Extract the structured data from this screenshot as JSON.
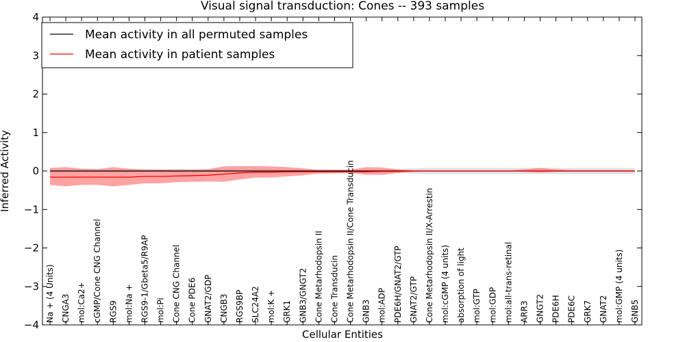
{
  "chart_data": {
    "type": "line",
    "title": "Visual signal transduction: Cones -- 393 samples",
    "xlabel": "Cellular Entities",
    "ylabel": "Inferred Activity",
    "ylim": [
      -4,
      4
    ],
    "yticks": [
      -4,
      -3,
      -2,
      -1,
      0,
      1,
      2,
      3,
      4
    ],
    "grid": false,
    "legend_position": "top-left",
    "categories": [
      "Na + (4 Units)",
      "CNGA3",
      "mol:Ca2+",
      "cGMP/Cone CNG Channel",
      "RGS9",
      "mol:Na +",
      "RGS9-1/Gbeta5/R9AP",
      "mol:Pi",
      "Cone CNG Channel",
      "Cone PDE6",
      "GNAT2/GDP",
      "CNGB3",
      "RGS9BP",
      "SLC24A2",
      "mol:K +",
      "GRK1",
      "GNB3/GNGT2",
      "Cone Metarhodopsin II",
      "Cone Transducin",
      "Cone Metarhodopsin II/Cone Transducin",
      "GNB3",
      "mol:ADP",
      "PDE6H/GNAT2/GTP",
      "GNAT2/GTP",
      "Cone Metarhodopsin II/X-Arrestin",
      "mol:cGMP (4 units)",
      "absorption of light",
      "mol:GTP",
      "mol:GDP",
      "mol:all-trans-retinal",
      "ARR3",
      "GNGT2",
      "PDE6H",
      "PDE6C",
      "GRK7",
      "GNAT2",
      "mol:GMP (4 units)",
      "GNB5"
    ],
    "series": [
      {
        "name": "Mean activity in all permuted samples",
        "color": "#000000",
        "band_color": "#c8c8c8",
        "values": [
          0,
          0,
          0,
          0,
          0,
          0,
          0,
          0,
          0,
          0,
          0,
          0,
          0,
          0,
          0,
          0,
          0,
          0,
          0,
          0,
          0,
          0,
          0,
          0,
          0,
          0,
          0,
          0,
          0,
          0,
          0,
          0,
          0,
          0,
          0,
          0,
          0,
          0
        ],
        "lower": [
          -0.04,
          -0.04,
          -0.04,
          -0.04,
          -0.04,
          -0.04,
          -0.04,
          -0.04,
          -0.04,
          -0.04,
          -0.04,
          -0.04,
          -0.04,
          -0.04,
          -0.04,
          -0.04,
          -0.04,
          -0.04,
          -0.04,
          -0.04,
          -0.04,
          -0.04,
          -0.06,
          -0.07,
          -0.08,
          -0.08,
          -0.08,
          -0.08,
          -0.08,
          -0.08,
          -0.08,
          -0.08,
          -0.08,
          -0.08,
          -0.08,
          -0.08,
          -0.08,
          -0.08
        ],
        "upper": [
          0.04,
          0.04,
          0.04,
          0.04,
          0.04,
          0.04,
          0.04,
          0.04,
          0.04,
          0.04,
          0.04,
          0.04,
          0.04,
          0.04,
          0.04,
          0.04,
          0.04,
          0.04,
          0.04,
          0.04,
          0.04,
          0.04,
          0.06,
          0.07,
          0.08,
          0.08,
          0.08,
          0.08,
          0.08,
          0.08,
          0.08,
          0.08,
          0.08,
          0.08,
          0.08,
          0.08,
          0.08,
          0.08
        ]
      },
      {
        "name": "Mean activity in patient samples",
        "color": "#ff0000",
        "band_color": "#ff6666",
        "values": [
          -0.16,
          -0.16,
          -0.16,
          -0.16,
          -0.16,
          -0.16,
          -0.14,
          -0.14,
          -0.13,
          -0.12,
          -0.11,
          -0.08,
          -0.05,
          -0.03,
          -0.03,
          -0.02,
          -0.02,
          -0.02,
          -0.02,
          -0.02,
          -0.02,
          -0.01,
          -0.01,
          0,
          0,
          0,
          0,
          0,
          0,
          0,
          0,
          0,
          0,
          0,
          0,
          0,
          0,
          0
        ],
        "lower": [
          -0.36,
          -0.4,
          -0.36,
          -0.36,
          -0.4,
          -0.36,
          -0.32,
          -0.32,
          -0.29,
          -0.28,
          -0.27,
          -0.28,
          -0.22,
          -0.17,
          -0.17,
          -0.14,
          -0.11,
          -0.07,
          -0.06,
          -0.05,
          -0.1,
          -0.1,
          -0.05,
          -0.02,
          -0.01,
          -0.01,
          -0.01,
          -0.01,
          -0.01,
          -0.01,
          -0.02,
          -0.04,
          -0.02,
          -0.01,
          -0.01,
          -0.01,
          -0.01,
          -0.01
        ],
        "upper": [
          0.08,
          0.1,
          0.06,
          0.05,
          0.1,
          0.06,
          0.04,
          0.04,
          0.04,
          0.04,
          0.05,
          0.12,
          0.13,
          0.13,
          0.12,
          0.1,
          0.07,
          0.03,
          0.03,
          0.03,
          0.1,
          0.09,
          0.04,
          0.02,
          0.01,
          0.01,
          0.01,
          0.01,
          0.01,
          0.01,
          0.04,
          0.08,
          0.04,
          0.02,
          0.02,
          0.02,
          0.02,
          0.02
        ]
      }
    ]
  }
}
